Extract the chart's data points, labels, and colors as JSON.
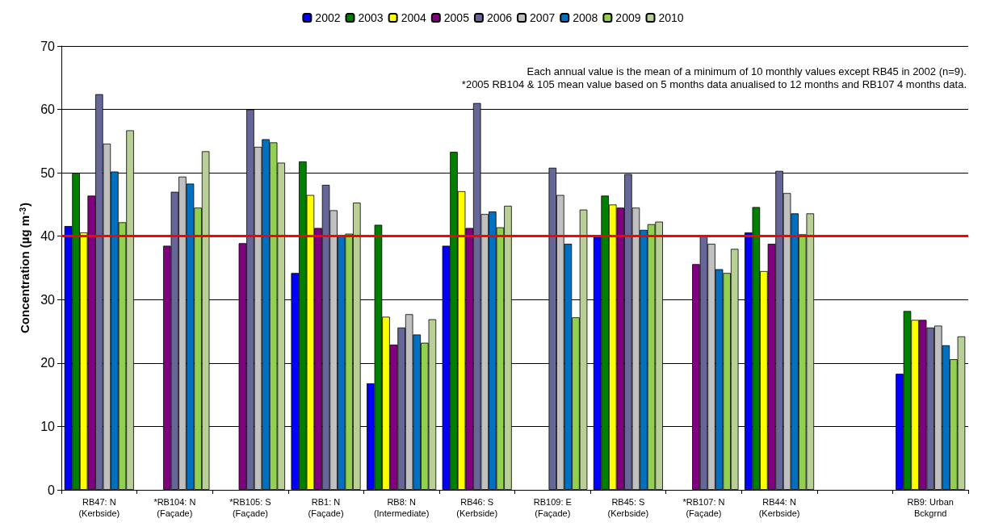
{
  "chart_data": {
    "type": "bar",
    "ylabel": "Concentration (µg m$^{-3}$)",
    "categories": [
      "RB47: N\n(Kerbside)",
      "*RB104: N\n(Façade)",
      "*RB105: S\n(Façade)",
      "RB1: N\n(Façade)",
      "RB8: N\n(Intermediate)",
      "RB46: S\n(Kerbside)",
      "RB109: E\n(Façade)",
      "RB45: S\n(Kerbside)",
      "*RB107: N\n(Façade)",
      "RB44: N\n(Kerbside)",
      null,
      "RB9: Urban\nBckgrnd"
    ],
    "series": [
      {
        "name": "2002",
        "color": "#0000ff",
        "values": [
          41.6,
          null,
          null,
          34.2,
          16.8,
          38.5,
          null,
          39.9,
          null,
          40.6,
          null,
          18.3
        ]
      },
      {
        "name": "2003",
        "color": "#008000",
        "values": [
          50.0,
          null,
          null,
          51.8,
          41.8,
          53.3,
          null,
          46.4,
          null,
          44.6,
          null,
          28.2
        ]
      },
      {
        "name": "2004",
        "color": "#ffff00",
        "values": [
          40.6,
          null,
          null,
          46.5,
          27.3,
          47.1,
          null,
          45.0,
          null,
          34.5,
          null,
          26.8
        ]
      },
      {
        "name": "2005",
        "color": "#800080",
        "values": [
          46.4,
          38.5,
          38.9,
          41.3,
          22.9,
          41.3,
          null,
          44.5,
          35.6,
          38.8,
          null,
          26.8
        ]
      },
      {
        "name": "2006",
        "color": "#666699",
        "values": [
          62.4,
          47.0,
          60.0,
          48.1,
          25.6,
          61.0,
          50.8,
          49.8,
          40.0,
          50.3,
          null,
          25.6
        ]
      },
      {
        "name": "2007",
        "color": "#c0c0c0",
        "values": [
          54.6,
          49.4,
          54.1,
          44.1,
          27.7,
          43.5,
          46.5,
          44.5,
          38.8,
          46.8,
          null,
          25.9
        ]
      },
      {
        "name": "2008",
        "color": "#0070c0",
        "values": [
          50.2,
          48.3,
          55.3,
          40.0,
          24.5,
          43.9,
          38.8,
          41.0,
          34.8,
          43.6,
          null,
          22.8
        ]
      },
      {
        "name": "2009",
        "color": "#92d050",
        "values": [
          42.2,
          44.5,
          54.8,
          40.4,
          23.2,
          41.4,
          27.2,
          41.9,
          34.2,
          40.3,
          null,
          20.6
        ]
      },
      {
        "name": "2010",
        "color": "#b8cf96",
        "values": [
          56.7,
          53.4,
          51.6,
          45.3,
          26.9,
          44.8,
          44.2,
          42.3,
          38.0,
          43.6,
          null,
          24.2
        ]
      }
    ],
    "ylim": [
      0,
      70
    ],
    "yticks": [
      0,
      10,
      20,
      30,
      40,
      50,
      60,
      70
    ],
    "grid": "y",
    "legend": "top",
    "ref_lines": [
      {
        "axis": "y",
        "value": 40,
        "color": "#ff0000"
      }
    ],
    "annotations": [
      "Each annual value is the mean of a minimum of 10 monthly values except RB45 in 2002 (n=9).",
      "*2005 RB104 & 105 mean value based on 5 months data anualised to 12 months and RB107 4 months data."
    ]
  }
}
